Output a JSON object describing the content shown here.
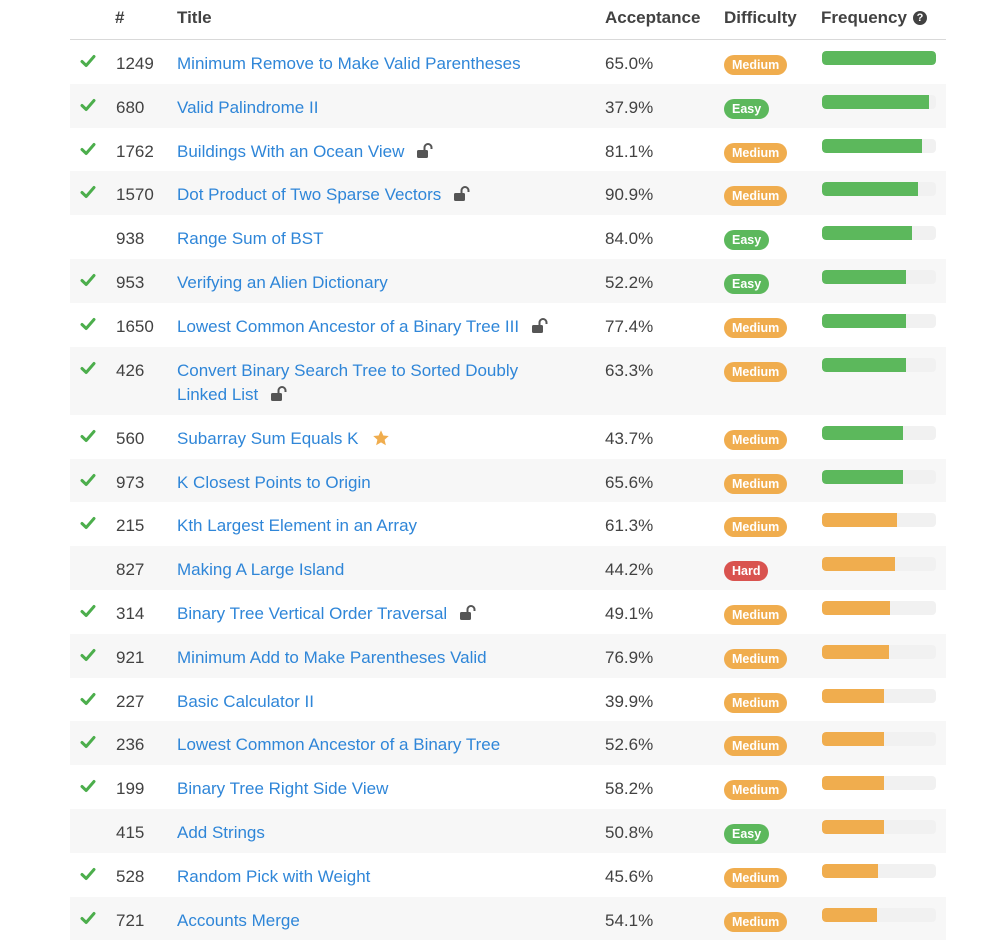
{
  "header": {
    "num": "#",
    "title": "Title",
    "acceptance": "Acceptance",
    "difficulty": "Difficulty",
    "frequency": "Frequency",
    "help": "?"
  },
  "colors": {
    "high": "#5cb85c",
    "mid": "#f0ad4e"
  },
  "rows": [
    {
      "solved": true,
      "num": "1249",
      "title": "Minimum Remove to Make Valid Parentheses",
      "acceptance": "65.0%",
      "difficulty": "Medium",
      "frequency": 1.0,
      "tier": "high"
    },
    {
      "solved": true,
      "num": "680",
      "title": "Valid Palindrome II",
      "acceptance": "37.9%",
      "difficulty": "Easy",
      "frequency": 0.94,
      "tier": "high"
    },
    {
      "solved": true,
      "num": "1762",
      "title": "Buildings With an Ocean View",
      "acceptance": "81.1%",
      "difficulty": "Medium",
      "frequency": 0.88,
      "tier": "high",
      "locked": true
    },
    {
      "solved": true,
      "num": "1570",
      "title": "Dot Product of Two Sparse Vectors",
      "acceptance": "90.9%",
      "difficulty": "Medium",
      "frequency": 0.84,
      "tier": "high",
      "locked": true
    },
    {
      "solved": false,
      "num": "938",
      "title": "Range Sum of BST",
      "acceptance": "84.0%",
      "difficulty": "Easy",
      "frequency": 0.79,
      "tier": "high"
    },
    {
      "solved": true,
      "num": "953",
      "title": "Verifying an Alien Dictionary",
      "acceptance": "52.2%",
      "difficulty": "Easy",
      "frequency": 0.74,
      "tier": "high"
    },
    {
      "solved": true,
      "num": "1650",
      "title": "Lowest Common Ancestor of a Binary Tree III",
      "acceptance": "77.4%",
      "difficulty": "Medium",
      "frequency": 0.74,
      "tier": "high",
      "locked": true
    },
    {
      "solved": true,
      "num": "426",
      "title": "Convert Binary Search Tree to Sorted Doubly Linked List",
      "acceptance": "63.3%",
      "difficulty": "Medium",
      "frequency": 0.74,
      "tier": "high",
      "locked": true
    },
    {
      "solved": true,
      "num": "560",
      "title": "Subarray Sum Equals K",
      "acceptance": "43.7%",
      "difficulty": "Medium",
      "frequency": 0.71,
      "tier": "high",
      "starred": true
    },
    {
      "solved": true,
      "num": "973",
      "title": "K Closest Points to Origin",
      "acceptance": "65.6%",
      "difficulty": "Medium",
      "frequency": 0.71,
      "tier": "high"
    },
    {
      "solved": true,
      "num": "215",
      "title": "Kth Largest Element in an Array",
      "acceptance": "61.3%",
      "difficulty": "Medium",
      "frequency": 0.66,
      "tier": "mid"
    },
    {
      "solved": false,
      "num": "827",
      "title": "Making A Large Island",
      "acceptance": "44.2%",
      "difficulty": "Hard",
      "frequency": 0.64,
      "tier": "mid"
    },
    {
      "solved": true,
      "num": "314",
      "title": "Binary Tree Vertical Order Traversal",
      "acceptance": "49.1%",
      "difficulty": "Medium",
      "frequency": 0.6,
      "tier": "mid",
      "locked": true
    },
    {
      "solved": true,
      "num": "921",
      "title": "Minimum Add to Make Parentheses Valid",
      "acceptance": "76.9%",
      "difficulty": "Medium",
      "frequency": 0.59,
      "tier": "mid"
    },
    {
      "solved": true,
      "num": "227",
      "title": "Basic Calculator II",
      "acceptance": "39.9%",
      "difficulty": "Medium",
      "frequency": 0.54,
      "tier": "mid"
    },
    {
      "solved": true,
      "num": "236",
      "title": "Lowest Common Ancestor of a Binary Tree",
      "acceptance": "52.6%",
      "difficulty": "Medium",
      "frequency": 0.54,
      "tier": "mid"
    },
    {
      "solved": true,
      "num": "199",
      "title": "Binary Tree Right Side View",
      "acceptance": "58.2%",
      "difficulty": "Medium",
      "frequency": 0.54,
      "tier": "mid"
    },
    {
      "solved": false,
      "num": "415",
      "title": "Add Strings",
      "acceptance": "50.8%",
      "difficulty": "Easy",
      "frequency": 0.54,
      "tier": "mid"
    },
    {
      "solved": true,
      "num": "528",
      "title": "Random Pick with Weight",
      "acceptance": "45.6%",
      "difficulty": "Medium",
      "frequency": 0.49,
      "tier": "mid"
    },
    {
      "solved": true,
      "num": "721",
      "title": "Accounts Merge",
      "acceptance": "54.1%",
      "difficulty": "Medium",
      "frequency": 0.48,
      "tier": "mid"
    }
  ]
}
